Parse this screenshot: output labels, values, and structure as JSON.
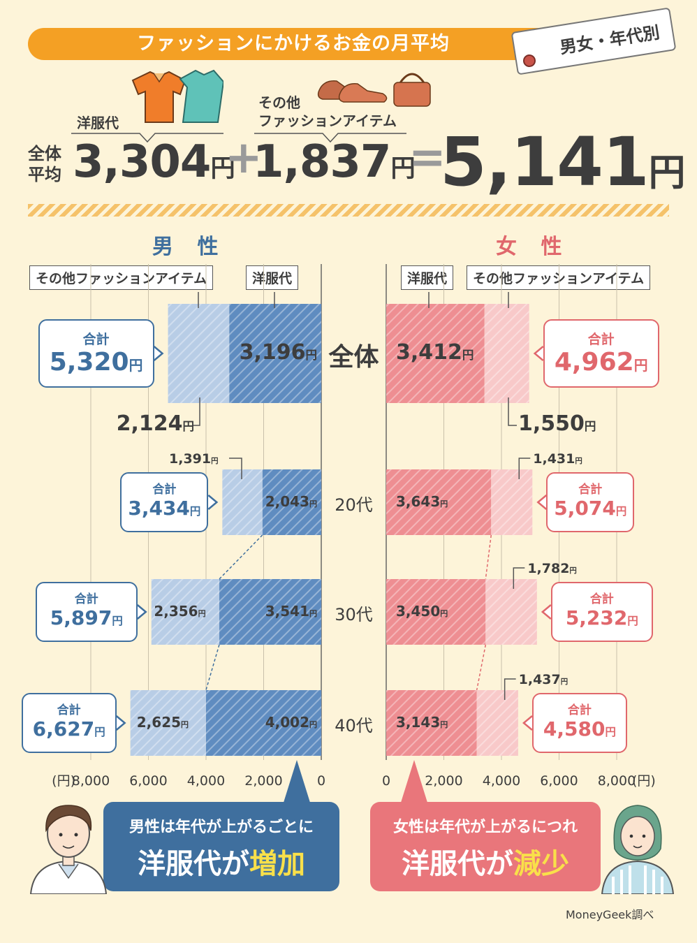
{
  "header": {
    "title": "ファッションにかけるお金の月平均",
    "tag": "男女・年代別",
    "clothes_label": "洋服代",
    "other_label_1": "その他",
    "other_label_2": "ファッションアイテム",
    "avg_label_1": "全体",
    "avg_label_2": "平均",
    "clothes_value": "3,304",
    "other_value": "1,837",
    "total_value": "5,141",
    "yen": "円",
    "plus": "+",
    "equals": "="
  },
  "male": {
    "heading": "男 性",
    "legend_other": "その他ファッションアイテム",
    "legend_clothes": "洋服代"
  },
  "female": {
    "heading": "女 性",
    "legend_other": "その他ファッションアイテム",
    "legend_clothes": "洋服代"
  },
  "total_label": "合計",
  "axis_unit": "(円)",
  "colors": {
    "male_clothes": "#5f8cc0",
    "male_other": "#b8cde6",
    "female_clothes": "#ee8e92",
    "female_other": "#f8c9c9",
    "orange": "#f4a024"
  },
  "chart_data": {
    "type": "bar",
    "title": "ファッションにかけるお金の月平均 男女・年代別",
    "orientation": "horizontal-butterfly",
    "categories": [
      "全体",
      "20代",
      "30代",
      "40代"
    ],
    "xlim": [
      0,
      8000
    ],
    "ticks": [
      "0",
      "2,000",
      "4,000",
      "6,000",
      "8,000"
    ],
    "tick_values": [
      0,
      2000,
      4000,
      6000,
      8000
    ],
    "male": {
      "clothes": [
        3196,
        2043,
        3541,
        4002
      ],
      "other": [
        2124,
        1391,
        2356,
        2625
      ],
      "totals": [
        5320,
        3434,
        5897,
        6627
      ],
      "clothes_labels": [
        "3,196",
        "2,043",
        "3,541",
        "4,002"
      ],
      "other_labels": [
        "2,124",
        "1,391",
        "2,356",
        "2,625"
      ],
      "total_labels": [
        "5,320",
        "3,434",
        "5,897",
        "6,627"
      ]
    },
    "female": {
      "clothes": [
        3412,
        3643,
        3450,
        3143
      ],
      "other": [
        1550,
        1431,
        1782,
        1437
      ],
      "totals": [
        4962,
        5074,
        5232,
        4580
      ],
      "clothes_labels": [
        "3,412",
        "3,643",
        "3,450",
        "3,143"
      ],
      "other_labels": [
        "1,550",
        "1,431",
        "1,782",
        "1,437"
      ],
      "total_labels": [
        "4,962",
        "5,074",
        "5,232",
        "4,580"
      ]
    }
  },
  "messages": {
    "male_line1": "男性は年代が上がるごとに",
    "male_line2a": "洋服代が",
    "male_line2b": "増加",
    "female_line1": "女性は年代が上がるにつれ",
    "female_line2a": "洋服代が",
    "female_line2b": "減少"
  },
  "credit": "MoneyGeek調べ"
}
